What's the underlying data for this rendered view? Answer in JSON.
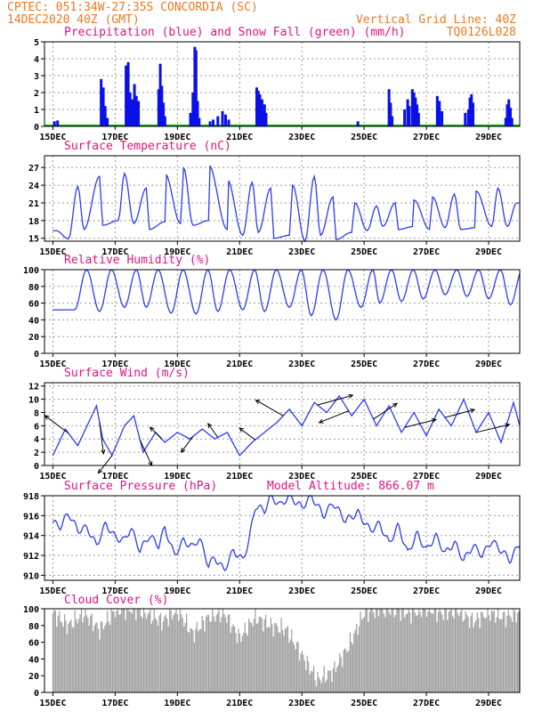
{
  "header": {
    "left_line1": "CPTEC:  051:34W-27:35S  CONCORDIA (SC)",
    "left_line2": "14DEC2020 40Z (GMT)",
    "right_line1": "Vertical Grid Line: 40Z",
    "right_line2": "TQ0126L028"
  },
  "colors": {
    "header": "#f07820",
    "titles": "#e0147f",
    "precip": "#0a10e8",
    "snow": "#00b000",
    "line": "#2b3cf5",
    "cloud": "#9e9e9e",
    "arrow": "#000000"
  },
  "chart_data": [
    {
      "type": "bar",
      "title": "Precipitation (blue) and Snow Fall (green) (mm/h)",
      "x_ticks": [
        "15DEC",
        "17DEC",
        "19DEC",
        "21DEC",
        "23DEC",
        "25DEC",
        "27DEC",
        "29DEC"
      ],
      "xlim_days": [
        0,
        15
      ],
      "ylim": [
        0,
        5
      ],
      "y_ticks": [
        0,
        1,
        2,
        3,
        4,
        5
      ],
      "grid": true,
      "series": [
        {
          "name": "Precipitation",
          "color": "#0a10e8",
          "points": [
            [
              0.05,
              0.3
            ],
            [
              0.15,
              0.35
            ],
            [
              1.55,
              2.8
            ],
            [
              1.62,
              2.3
            ],
            [
              1.68,
              1.2
            ],
            [
              1.75,
              0.5
            ],
            [
              2.35,
              3.6
            ],
            [
              2.42,
              3.8
            ],
            [
              2.48,
              2.0
            ],
            [
              2.55,
              1.6
            ],
            [
              2.62,
              2.5
            ],
            [
              2.68,
              1.8
            ],
            [
              2.75,
              1.5
            ],
            [
              3.4,
              2.2
            ],
            [
              3.45,
              3.7
            ],
            [
              3.5,
              2.4
            ],
            [
              3.55,
              1.4
            ],
            [
              3.6,
              0.6
            ],
            [
              4.42,
              0.8
            ],
            [
              4.5,
              2.0
            ],
            [
              4.56,
              4.7
            ],
            [
              4.6,
              4.5
            ],
            [
              4.65,
              1.5
            ],
            [
              4.7,
              0.5
            ],
            [
              5.05,
              0.3
            ],
            [
              5.15,
              0.4
            ],
            [
              5.3,
              0.6
            ],
            [
              5.45,
              0.9
            ],
            [
              5.55,
              0.7
            ],
            [
              5.65,
              0.4
            ],
            [
              6.55,
              2.3
            ],
            [
              6.6,
              2.1
            ],
            [
              6.65,
              1.9
            ],
            [
              6.72,
              1.6
            ],
            [
              6.8,
              1.3
            ],
            [
              6.85,
              0.8
            ],
            [
              9.8,
              0.3
            ],
            [
              10.8,
              2.2
            ],
            [
              10.85,
              1.4
            ],
            [
              10.9,
              0.6
            ],
            [
              11.3,
              1.0
            ],
            [
              11.4,
              1.6
            ],
            [
              11.45,
              1.2
            ],
            [
              11.55,
              2.2
            ],
            [
              11.6,
              2.0
            ],
            [
              11.65,
              1.7
            ],
            [
              11.7,
              1.3
            ],
            [
              11.75,
              0.8
            ],
            [
              12.35,
              1.8
            ],
            [
              12.42,
              1.5
            ],
            [
              12.5,
              0.9
            ],
            [
              13.25,
              0.8
            ],
            [
              13.35,
              1.0
            ],
            [
              13.4,
              1.7
            ],
            [
              13.45,
              1.9
            ],
            [
              13.5,
              1.4
            ],
            [
              14.55,
              0.5
            ],
            [
              14.6,
              1.3
            ],
            [
              14.65,
              1.6
            ],
            [
              14.7,
              1.1
            ],
            [
              14.75,
              0.5
            ]
          ]
        },
        {
          "name": "Snow Fall",
          "color": "#00b000",
          "values": "0 throughout"
        }
      ]
    },
    {
      "type": "line",
      "title": "Surface Temperature (nC)",
      "x_ticks": [
        "15DEC",
        "17DEC",
        "19DEC",
        "21DEC",
        "23DEC",
        "25DEC",
        "27DEC",
        "29DEC"
      ],
      "xlim_days": [
        0,
        15
      ],
      "ylim": [
        14.5,
        29
      ],
      "y_ticks": [
        15,
        18,
        21,
        24,
        27
      ],
      "grid": true,
      "min_points": [
        [
          0.1,
          16.3
        ],
        [
          0.5,
          14.9
        ],
        [
          1.0,
          16.5
        ],
        [
          1.6,
          17.2
        ],
        [
          2.1,
          18.0
        ],
        [
          2.6,
          17.5
        ],
        [
          3.1,
          16.5
        ],
        [
          3.6,
          17.8
        ],
        [
          4.1,
          17.5
        ],
        [
          4.5,
          17.2
        ],
        [
          5.0,
          18.0
        ],
        [
          5.6,
          16.5
        ],
        [
          6.1,
          15.5
        ],
        [
          6.6,
          16.0
        ],
        [
          7.1,
          15.0
        ],
        [
          7.6,
          15.5
        ],
        [
          8.1,
          14.5
        ],
        [
          8.6,
          15.5
        ],
        [
          9.1,
          14.8
        ],
        [
          9.6,
          16.0
        ],
        [
          10.1,
          16.3
        ],
        [
          10.6,
          17.0
        ],
        [
          11.1,
          16.5
        ],
        [
          11.6,
          17.0
        ],
        [
          12.1,
          16.5
        ],
        [
          12.6,
          16.8
        ],
        [
          13.1,
          16.5
        ],
        [
          13.6,
          16.8
        ],
        [
          14.1,
          17.0
        ],
        [
          14.6,
          17.0
        ]
      ],
      "max_points": [
        [
          0.8,
          23.8
        ],
        [
          1.5,
          25.5
        ],
        [
          2.3,
          26.0
        ],
        [
          3.0,
          23.5
        ],
        [
          3.6,
          26.0
        ],
        [
          4.2,
          27.0
        ],
        [
          5.0,
          27.5
        ],
        [
          5.6,
          25.0
        ],
        [
          6.4,
          24.5
        ],
        [
          7.0,
          23.5
        ],
        [
          7.7,
          24.0
        ],
        [
          8.4,
          25.5
        ],
        [
          9.0,
          22.0
        ],
        [
          9.7,
          21.0
        ],
        [
          10.4,
          20.5
        ],
        [
          11.0,
          21.0
        ],
        [
          11.6,
          21.5
        ],
        [
          12.2,
          22.0
        ],
        [
          12.9,
          22.5
        ],
        [
          13.6,
          23.0
        ],
        [
          14.3,
          23.5
        ],
        [
          14.9,
          21.0
        ]
      ]
    },
    {
      "type": "line",
      "title": "Relative Humidity (%)",
      "x_ticks": [
        "15DEC",
        "17DEC",
        "19DEC",
        "21DEC",
        "23DEC",
        "25DEC",
        "27DEC",
        "29DEC"
      ],
      "xlim_days": [
        0,
        15
      ],
      "ylim": [
        0,
        100
      ],
      "y_ticks": [
        0,
        20,
        40,
        60,
        80,
        100
      ],
      "grid": true,
      "min_points": [
        [
          0.7,
          52
        ],
        [
          1.5,
          50
        ],
        [
          2.3,
          55
        ],
        [
          3.0,
          55
        ],
        [
          3.8,
          48
        ],
        [
          4.6,
          47
        ],
        [
          5.3,
          50
        ],
        [
          6.1,
          52
        ],
        [
          6.8,
          50
        ],
        [
          7.6,
          55
        ],
        [
          8.3,
          45
        ],
        [
          9.1,
          40
        ],
        [
          9.9,
          55
        ],
        [
          10.5,
          60
        ],
        [
          11.2,
          62
        ],
        [
          11.9,
          65
        ],
        [
          12.6,
          70
        ],
        [
          13.3,
          68
        ],
        [
          14.0,
          65
        ],
        [
          14.7,
          58
        ]
      ],
      "max_at": 100
    },
    {
      "type": "line",
      "title": "Surface Wind (m/s)",
      "x_ticks": [
        "15DEC",
        "17DEC",
        "19DEC",
        "21DEC",
        "23DEC",
        "25DEC",
        "27DEC",
        "29DEC"
      ],
      "xlim_days": [
        0,
        15
      ],
      "ylim": [
        0,
        12.5
      ],
      "y_ticks": [
        0,
        2,
        4,
        6,
        8,
        10,
        12
      ],
      "grid": true,
      "speed_points": [
        [
          0,
          1.5
        ],
        [
          0.4,
          5.5
        ],
        [
          0.8,
          3.0
        ],
        [
          1.2,
          7.0
        ],
        [
          1.4,
          9.0
        ],
        [
          1.6,
          4.0
        ],
        [
          1.9,
          1.5
        ],
        [
          2.3,
          6.0
        ],
        [
          2.6,
          7.5
        ],
        [
          2.9,
          2.0
        ],
        [
          3.3,
          5.0
        ],
        [
          3.6,
          3.5
        ],
        [
          4.0,
          5.0
        ],
        [
          4.4,
          4.0
        ],
        [
          4.8,
          5.5
        ],
        [
          5.2,
          4.0
        ],
        [
          5.6,
          5.0
        ],
        [
          6.0,
          1.5
        ],
        [
          6.4,
          3.5
        ],
        [
          6.8,
          5.0
        ],
        [
          7.2,
          6.5
        ],
        [
          7.6,
          8.5
        ],
        [
          8.0,
          6.0
        ],
        [
          8.4,
          9.5
        ],
        [
          8.8,
          8.0
        ],
        [
          9.2,
          10.5
        ],
        [
          9.6,
          7.5
        ],
        [
          10.0,
          10.0
        ],
        [
          10.4,
          6.0
        ],
        [
          10.8,
          9.0
        ],
        [
          11.2,
          5.0
        ],
        [
          11.6,
          8.0
        ],
        [
          12.0,
          4.5
        ],
        [
          12.4,
          8.5
        ],
        [
          12.8,
          6.0
        ],
        [
          13.2,
          10.0
        ],
        [
          13.6,
          5.0
        ],
        [
          14.0,
          8.0
        ],
        [
          14.4,
          3.5
        ],
        [
          14.8,
          9.5
        ],
        [
          15.0,
          6.0
        ]
      ],
      "arrows": [
        [
          0.5,
          -1.2,
          0.9
        ],
        [
          1.5,
          0.2,
          -1.6
        ],
        [
          1.9,
          -0.7,
          -0.9
        ],
        [
          2.8,
          0.6,
          -1.3
        ],
        [
          3.5,
          -0.6,
          0.6
        ],
        [
          4.5,
          -0.6,
          -0.8
        ],
        [
          5.3,
          -0.5,
          0.7
        ],
        [
          6.5,
          -0.8,
          0.6
        ],
        [
          7.4,
          -1.4,
          0.8
        ],
        [
          8.5,
          1.8,
          0.5
        ],
        [
          9.5,
          -1.5,
          -0.6
        ],
        [
          10.3,
          1.2,
          0.8
        ],
        [
          11.3,
          1.6,
          0.4
        ],
        [
          12.6,
          1.5,
          0.4
        ],
        [
          13.6,
          1.7,
          0.4
        ]
      ]
    },
    {
      "type": "line",
      "title": "Surface Pressure (hPa)",
      "annotation": "Model Altitude: 866.07 m",
      "x_ticks": [
        "15DEC",
        "17DEC",
        "19DEC",
        "21DEC",
        "23DEC",
        "25DEC",
        "27DEC",
        "29DEC"
      ],
      "xlim_days": [
        0,
        15
      ],
      "ylim": [
        909.5,
        918
      ],
      "y_ticks": [
        910,
        912,
        914,
        916,
        918
      ],
      "grid": true,
      "points": [
        [
          0,
          915.3
        ],
        [
          0.25,
          914.9
        ],
        [
          0.5,
          916.3
        ],
        [
          0.8,
          914.5
        ],
        [
          1.1,
          914.8
        ],
        [
          1.4,
          913.0
        ],
        [
          1.7,
          915.2
        ],
        [
          2.0,
          913.8
        ],
        [
          2.3,
          913.5
        ],
        [
          2.5,
          914.8
        ],
        [
          2.8,
          912.5
        ],
        [
          3.1,
          914.0
        ],
        [
          3.4,
          913.0
        ],
        [
          3.6,
          914.8
        ],
        [
          3.9,
          912.0
        ],
        [
          4.2,
          913.5
        ],
        [
          4.5,
          912.8
        ],
        [
          4.7,
          913.8
        ],
        [
          5.0,
          911.0
        ],
        [
          5.2,
          911.8
        ],
        [
          5.5,
          910.5
        ],
        [
          5.8,
          912.5
        ],
        [
          6.1,
          911.5
        ],
        [
          6.3,
          913.5
        ],
        [
          6.5,
          917.0
        ],
        [
          6.8,
          916.5
        ],
        [
          7.0,
          918.0
        ],
        [
          7.3,
          917.0
        ],
        [
          7.6,
          918.0
        ],
        [
          8.0,
          916.8
        ],
        [
          8.3,
          918.0
        ],
        [
          8.7,
          916.0
        ],
        [
          9.0,
          917.3
        ],
        [
          9.4,
          915.5
        ],
        [
          9.8,
          916.3
        ],
        [
          10.2,
          914.5
        ],
        [
          10.5,
          915.2
        ],
        [
          10.8,
          913.2
        ],
        [
          11.1,
          915.0
        ],
        [
          11.4,
          912.2
        ],
        [
          11.7,
          914.2
        ],
        [
          12.0,
          912.5
        ],
        [
          12.3,
          914.0
        ],
        [
          12.6,
          912.2
        ],
        [
          12.9,
          913.3
        ],
        [
          13.2,
          911.5
        ],
        [
          13.5,
          913.0
        ],
        [
          13.8,
          912.0
        ],
        [
          14.1,
          913.5
        ],
        [
          14.4,
          912.5
        ],
        [
          14.7,
          911.5
        ],
        [
          15.0,
          913.3
        ]
      ]
    },
    {
      "type": "bar",
      "title": "Cloud Cover (%)",
      "x_ticks": [
        "15DEC",
        "17DEC",
        "19DEC",
        "21DEC",
        "23DEC",
        "25DEC",
        "27DEC",
        "29DEC"
      ],
      "xlim_days": [
        0,
        15
      ],
      "ylim": [
        0,
        100
      ],
      "y_ticks": [
        0,
        20,
        40,
        60,
        80,
        100
      ],
      "grid": false,
      "points": [
        [
          0,
          95
        ],
        [
          0.5,
          80
        ],
        [
          1.0,
          95
        ],
        [
          1.5,
          75
        ],
        [
          2.0,
          98
        ],
        [
          2.5,
          100
        ],
        [
          3.0,
          95
        ],
        [
          3.5,
          85
        ],
        [
          4.0,
          98
        ],
        [
          4.5,
          70
        ],
        [
          5.0,
          90
        ],
        [
          5.5,
          95
        ],
        [
          6.0,
          65
        ],
        [
          6.5,
          90
        ],
        [
          7.0,
          80
        ],
        [
          7.5,
          75
        ],
        [
          8.0,
          45
        ],
        [
          8.5,
          15
        ],
        [
          9.0,
          25
        ],
        [
          9.5,
          55
        ],
        [
          10.0,
          95
        ],
        [
          10.5,
          100
        ],
        [
          11.0,
          98
        ],
        [
          11.5,
          95
        ],
        [
          12.0,
          100
        ],
        [
          12.5,
          95
        ],
        [
          13.0,
          98
        ],
        [
          13.5,
          85
        ],
        [
          14.0,
          95
        ],
        [
          14.5,
          90
        ],
        [
          15.0,
          95
        ]
      ]
    }
  ]
}
